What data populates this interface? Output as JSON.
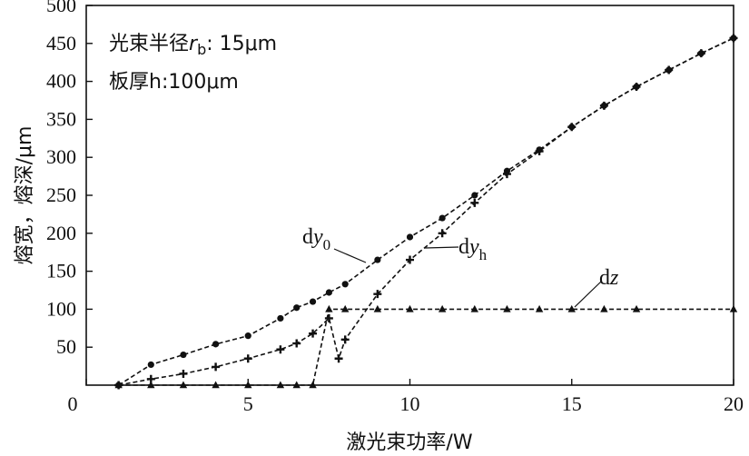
{
  "chart_data": {
    "type": "line",
    "xlabel": "激光束功率/W",
    "ylabel": "熔宽，熔深/μm",
    "xlim": [
      0,
      20
    ],
    "ylim": [
      0,
      500
    ],
    "x_ticks": [
      "0",
      "5",
      "10",
      "15",
      "20"
    ],
    "y_ticks": [
      "50",
      "100",
      "150",
      "200",
      "250",
      "300",
      "350",
      "400",
      "450",
      "500"
    ],
    "grid": false,
    "annotations": [
      {
        "key": "beam",
        "text": "光束半径rb: 15μm"
      },
      {
        "key": "thickness",
        "text": "板厚h:100μm"
      }
    ],
    "series": [
      {
        "name": "dy0",
        "marker": "circle",
        "x": [
          1,
          2,
          3,
          4,
          5,
          6,
          6.5,
          7,
          7.5,
          8,
          9,
          10,
          11,
          12,
          13,
          14,
          15,
          16,
          17,
          18,
          19,
          20
        ],
        "y": [
          0,
          27,
          40,
          54,
          65,
          88,
          102,
          110,
          122,
          133,
          165,
          195,
          220,
          250,
          282,
          310,
          340,
          368,
          393,
          415,
          437,
          457
        ]
      },
      {
        "name": "dyh",
        "marker": "plus",
        "x": [
          1,
          2,
          3,
          4,
          5,
          6,
          6.5,
          7,
          7.5,
          7.8,
          8,
          9,
          10,
          11,
          12,
          13,
          14,
          15,
          16,
          17,
          18,
          19,
          20
        ],
        "y": [
          0,
          8,
          15,
          24,
          35,
          47,
          55,
          68,
          88,
          35,
          60,
          120,
          165,
          200,
          240,
          278,
          308,
          340,
          368,
          393,
          415,
          437,
          457
        ]
      },
      {
        "name": "dz",
        "marker": "triangle",
        "x": [
          1,
          2,
          3,
          4,
          5,
          6,
          6.5,
          7,
          7.5,
          8,
          9,
          10,
          11,
          12,
          13,
          14,
          15,
          16,
          17,
          20
        ],
        "y": [
          0,
          0,
          0,
          0,
          0,
          0,
          0,
          0,
          100,
          100,
          100,
          100,
          100,
          100,
          100,
          100,
          100,
          100,
          100,
          100
        ]
      }
    ]
  }
}
